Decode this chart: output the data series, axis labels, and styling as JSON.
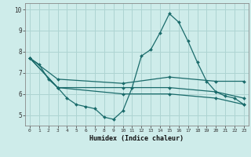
{
  "xlabel": "Humidex (Indice chaleur)",
  "background_color": "#ceecea",
  "grid_color": "#aed4d2",
  "line_color": "#1a6b6b",
  "xlim": [
    -0.5,
    23.5
  ],
  "ylim": [
    4.5,
    10.3
  ],
  "xticks": [
    0,
    1,
    2,
    3,
    4,
    5,
    6,
    7,
    8,
    9,
    10,
    11,
    12,
    13,
    14,
    15,
    16,
    17,
    18,
    19,
    20,
    21,
    22,
    23
  ],
  "yticks": [
    5,
    6,
    7,
    8,
    9,
    10
  ],
  "series": [
    {
      "x": [
        0,
        1,
        2,
        3,
        4,
        5,
        6,
        7,
        8,
        9,
        10,
        11,
        12,
        13,
        14,
        15,
        16,
        17,
        18,
        19,
        20,
        21,
        22,
        23
      ],
      "y": [
        7.7,
        7.4,
        6.7,
        6.3,
        5.8,
        5.5,
        5.4,
        5.3,
        4.9,
        4.8,
        5.2,
        6.3,
        7.8,
        8.1,
        8.9,
        9.8,
        9.4,
        8.5,
        7.5,
        6.6,
        6.1,
        5.9,
        5.8,
        5.5
      ]
    },
    {
      "x": [
        0,
        3,
        10,
        15,
        20,
        23
      ],
      "y": [
        7.7,
        6.7,
        6.5,
        6.8,
        6.6,
        6.6
      ]
    },
    {
      "x": [
        0,
        3,
        10,
        15,
        20,
        23
      ],
      "y": [
        7.7,
        6.3,
        6.3,
        6.3,
        6.1,
        5.8
      ]
    },
    {
      "x": [
        0,
        3,
        10,
        15,
        20,
        23
      ],
      "y": [
        7.7,
        6.3,
        6.0,
        6.0,
        5.8,
        5.5
      ]
    }
  ]
}
